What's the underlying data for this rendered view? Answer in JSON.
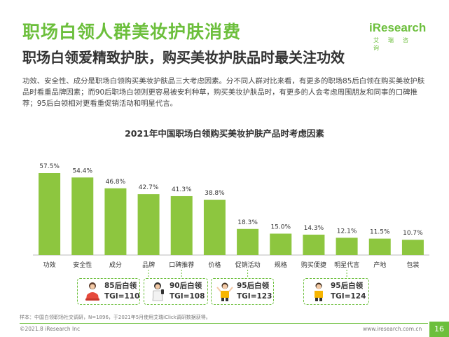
{
  "header": {
    "title": "职场白领人群美妆护肤消费",
    "subtitle": "职场白领爱精致护肤，购买美妆护肤品时最关注功效",
    "logo_main": "iResearch",
    "logo_cn": "艾瑞咨询"
  },
  "body_text": "功效、安全性、成分是职场白领购买美妆护肤品三大考虑因素。分不同人群对比来看，有更多的职场85后白领在购买美妆护肤品时看重品牌因素；而90后职场白领则更容易被安利种草，购买美妆护肤品时，有更多的人会考虑周围朋友和同事的口碑推荐；95后白领相对更看重促销活动和明星代言。",
  "chart_data": {
    "type": "bar",
    "title": "2021年中国职场白领购买美妆护肤产品时考虑因素",
    "categories": [
      "功效",
      "安全性",
      "成分",
      "品牌",
      "口碑推荐",
      "价格",
      "促销活动",
      "规格",
      "购买便捷",
      "明星代言",
      "产地",
      "包装"
    ],
    "values": [
      57.5,
      54.4,
      46.8,
      42.7,
      41.3,
      38.8,
      18.3,
      15.0,
      14.3,
      12.1,
      11.5,
      10.7
    ],
    "value_labels": [
      "57.5%",
      "54.4%",
      "46.8%",
      "42.7%",
      "41.3%",
      "38.8%",
      "18.3%",
      "15.0%",
      "14.3%",
      "12.1%",
      "11.5%",
      "10.7%"
    ],
    "ylim": [
      0,
      60
    ],
    "bar_color": "#8dc63f",
    "grid": false,
    "xlabel": "",
    "ylabel": ""
  },
  "tgi_callouts": [
    {
      "group": "85后白领",
      "tgi": "TGI=110",
      "category": "品牌"
    },
    {
      "group": "90后白领",
      "tgi": "TGI=108",
      "category": "口碑推荐"
    },
    {
      "group": "95后白领",
      "tgi": "TGI=123",
      "category": "促销活动"
    },
    {
      "group": "95后白领",
      "tgi": "TGI=124",
      "category": "明星代言"
    }
  ],
  "footer": {
    "note": "样本：中国白领职场社交调研，N=1896，于2021年5月使用艾瑞iClick调研数据获得。",
    "left": "©2021.8 iResearch Inc",
    "right": "www.iresearch.com.cn",
    "page": "16"
  },
  "colors": {
    "accent": "#6cbf3c",
    "bar": "#8dc63f"
  }
}
